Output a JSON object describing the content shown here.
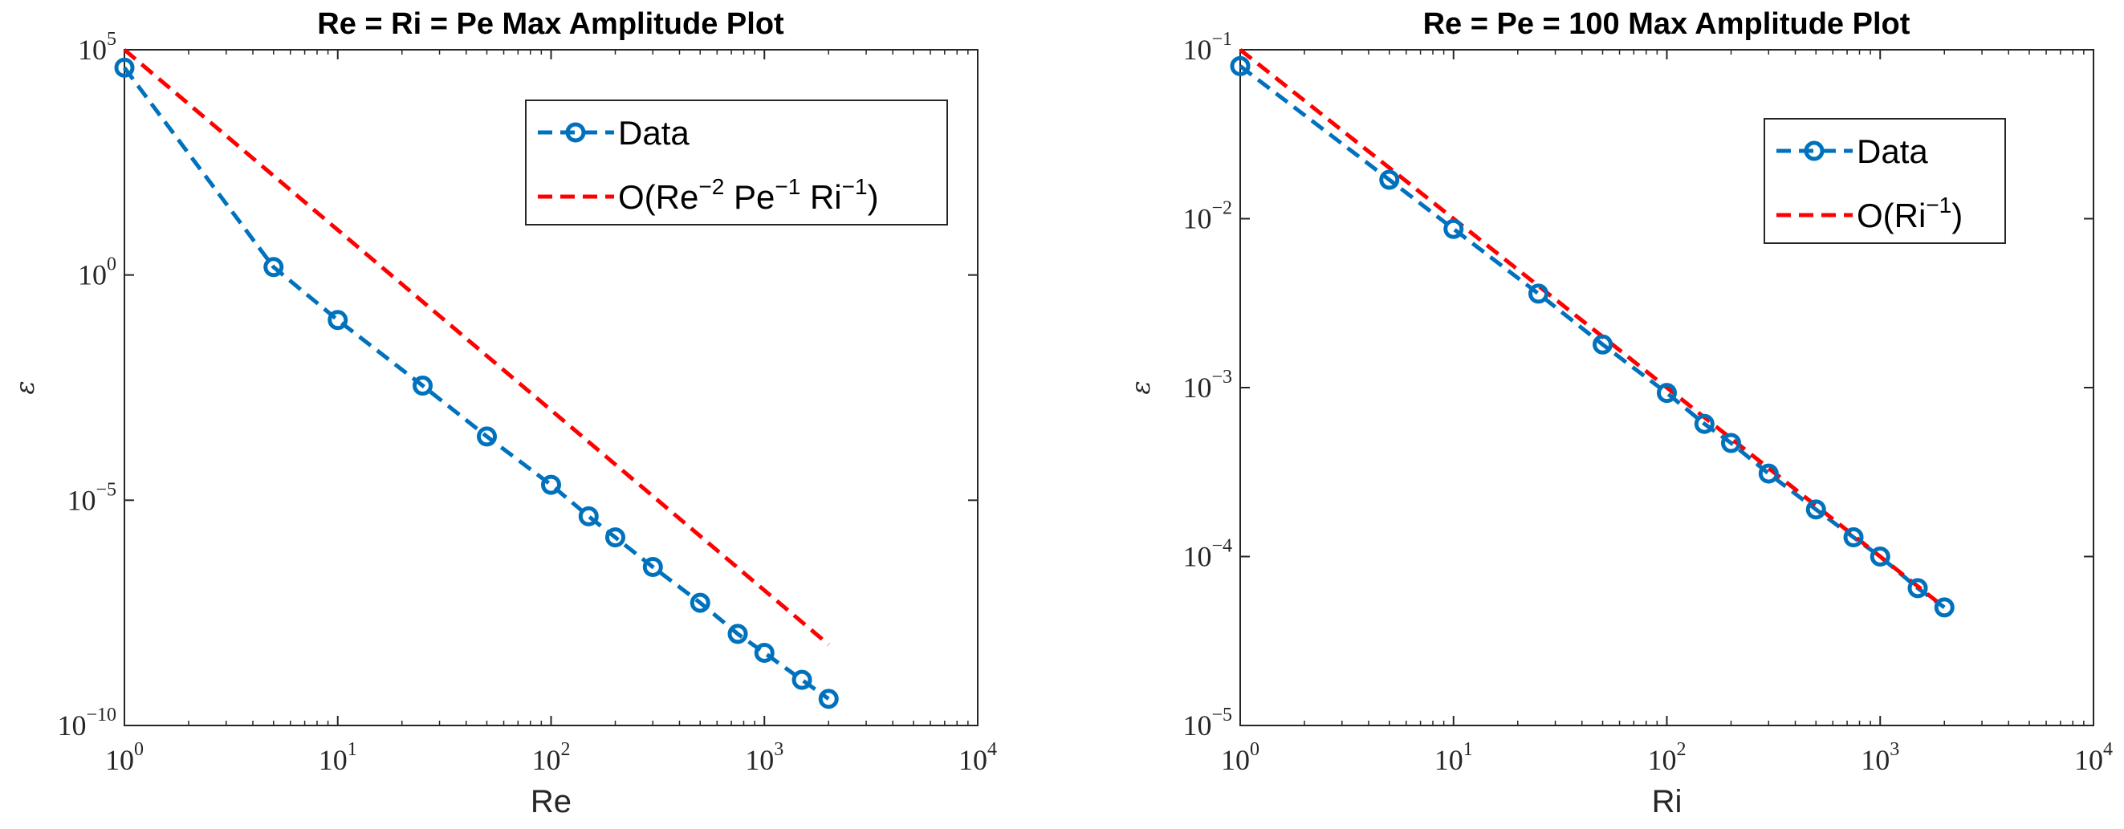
{
  "chart_data": [
    {
      "type": "line",
      "scale": "loglog",
      "title": "Re = Ri = Pe Max Amplitude Plot",
      "xlabel": "Re",
      "ylabel": "ε",
      "xlim": [
        1,
        10000
      ],
      "ylim": [
        1e-10,
        100000
      ],
      "xticks": [
        {
          "base": "10",
          "exp": "0"
        },
        {
          "base": "10",
          "exp": "1"
        },
        {
          "base": "10",
          "exp": "2"
        },
        {
          "base": "10",
          "exp": "3"
        },
        {
          "base": "10",
          "exp": "4"
        }
      ],
      "xtick_values": [
        1,
        10,
        100,
        1000,
        10000
      ],
      "yticks": [
        {
          "base": "10",
          "exp": "−10"
        },
        {
          "base": "10",
          "exp": "−5"
        },
        {
          "base": "10",
          "exp": "0"
        },
        {
          "base": "10",
          "exp": "5"
        }
      ],
      "ytick_values": [
        1e-10,
        1e-05,
        1,
        100000
      ],
      "legend_location": "top-right",
      "series": [
        {
          "name": "Data",
          "style": "dashed-circle",
          "color": "#0072BD",
          "x": [
            1,
            5,
            10,
            25,
            50,
            100,
            150,
            200,
            300,
            500,
            750,
            1000,
            1500,
            2000
          ],
          "y": [
            40000,
            1.5,
            0.1,
            0.0035,
            0.00026,
            2.2e-05,
            4.4e-06,
            1.5e-06,
            3.3e-07,
            5.3e-08,
            1.08e-08,
            4.1e-09,
            1.03e-09,
            3.9e-10
          ]
        },
        {
          "name": "O(Re^-2 Pe^-1 Ri^-1)",
          "label_parts": [
            [
              "O(Re",
              ""
            ],
            [
              "−2",
              "sup"
            ],
            [
              " Pe",
              ""
            ],
            [
              "−1",
              "sup"
            ],
            [
              " Ri",
              ""
            ],
            [
              "−1",
              "sup"
            ],
            [
              ")",
              ""
            ]
          ],
          "style": "dashed",
          "color": "#FF0000",
          "fit": {
            "coef": 100000,
            "power": -4
          },
          "x": [
            1,
            2000
          ]
        }
      ]
    },
    {
      "type": "line",
      "scale": "loglog",
      "title": "Re = Pe = 100 Max Amplitude Plot",
      "xlabel": "Ri",
      "ylabel": "ε",
      "xlim": [
        1,
        10000
      ],
      "ylim": [
        1e-05,
        0.1
      ],
      "xticks": [
        {
          "base": "10",
          "exp": "0"
        },
        {
          "base": "10",
          "exp": "1"
        },
        {
          "base": "10",
          "exp": "2"
        },
        {
          "base": "10",
          "exp": "3"
        },
        {
          "base": "10",
          "exp": "4"
        }
      ],
      "xtick_values": [
        1,
        10,
        100,
        1000,
        10000
      ],
      "yticks": [
        {
          "base": "10",
          "exp": "−5"
        },
        {
          "base": "10",
          "exp": "−4"
        },
        {
          "base": "10",
          "exp": "−3"
        },
        {
          "base": "10",
          "exp": "−2"
        },
        {
          "base": "10",
          "exp": "−1"
        }
      ],
      "ytick_values": [
        1e-05,
        0.0001,
        0.001,
        0.01,
        0.1
      ],
      "legend_location": "top-right",
      "series": [
        {
          "name": "Data",
          "style": "dashed-circle",
          "color": "#0072BD",
          "x": [
            1,
            5,
            10,
            25,
            50,
            100,
            150,
            200,
            300,
            500,
            750,
            1000,
            1500,
            2000
          ],
          "y": [
            0.08,
            0.017,
            0.0087,
            0.0036,
            0.0018,
            0.00093,
            0.00061,
            0.00047,
            0.00031,
            0.00019,
            0.00013,
            0.0001,
            6.5e-05,
            5e-05
          ]
        },
        {
          "name": "O(Ri^-1)",
          "label_parts": [
            [
              "O(Ri",
              ""
            ],
            [
              "−1",
              "sup"
            ],
            [
              ")",
              ""
            ]
          ],
          "style": "dashed",
          "color": "#FF0000",
          "fit": {
            "coef": 0.1,
            "power": -1
          },
          "x": [
            1,
            2000
          ]
        }
      ]
    }
  ]
}
